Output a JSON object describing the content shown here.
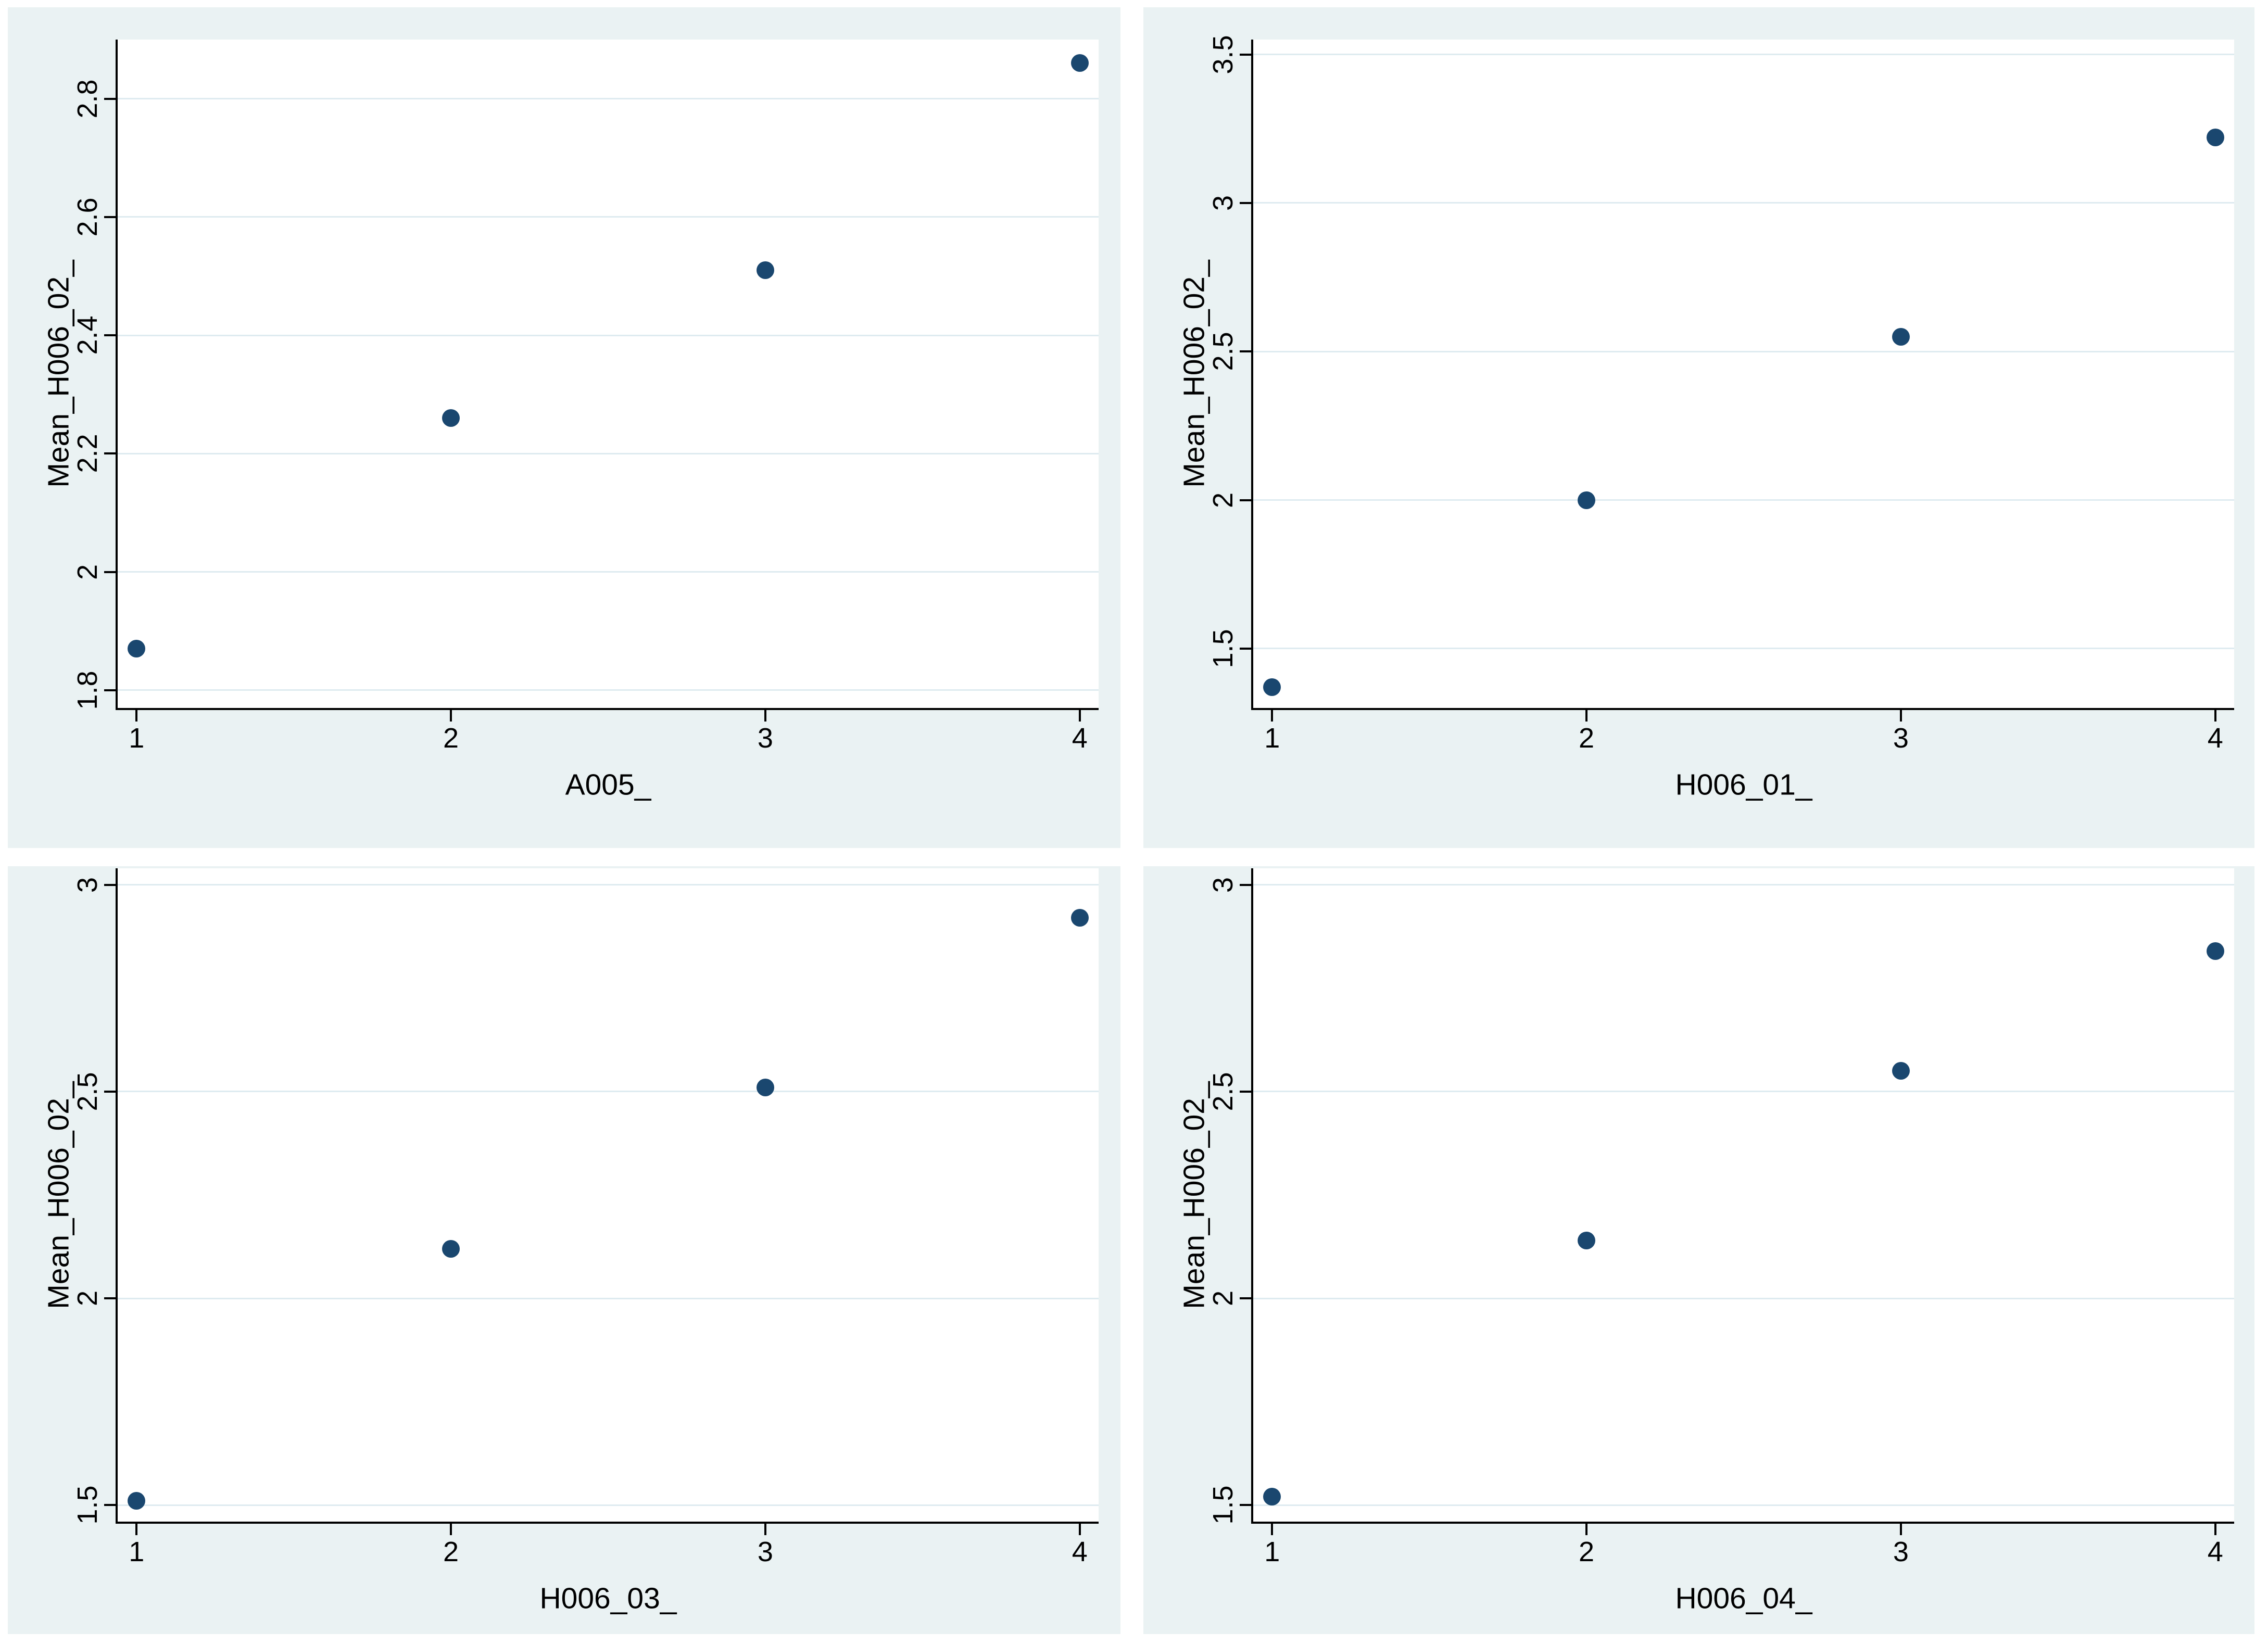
{
  "page": {
    "description": "Four Stata-style scatter plots arranged in a 2x2 grid, each plotting Mean_H006_02_ against a categorical 1-4 variable"
  },
  "colors": {
    "page_bg": "#ffffff",
    "panel_bg": "#eaf2f3",
    "plot_bg": "#ffffff",
    "grid": "#deebf0",
    "axis": "#000000",
    "text": "#000000",
    "dot": "#1a476f"
  },
  "chart_data": [
    {
      "panel": "top-left",
      "type": "scatter",
      "title": "",
      "xlabel": "A005_",
      "ylabel": "Mean_H006_02_",
      "x": [
        1,
        2,
        3,
        4
      ],
      "y": [
        1.87,
        2.26,
        2.51,
        2.86
      ],
      "xticks": [
        1,
        2,
        3,
        4
      ],
      "xtick_labels": [
        "1",
        "2",
        "3",
        "4"
      ],
      "yticks": [
        1.8,
        2.0,
        2.2,
        2.4,
        2.6,
        2.8
      ],
      "ytick_labels": [
        "1.8",
        "2",
        "2.2",
        "2.4",
        "2.6",
        "2.8"
      ],
      "xlim": [
        0.94,
        4.06
      ],
      "ylim": [
        1.77,
        2.9
      ],
      "grid": "horizontal",
      "legend": "none"
    },
    {
      "panel": "top-right",
      "type": "scatter",
      "title": "",
      "xlabel": "H006_01_",
      "ylabel": "Mean_H006_02_",
      "x": [
        1,
        2,
        3,
        4
      ],
      "y": [
        1.37,
        2.0,
        2.55,
        3.22
      ],
      "xticks": [
        1,
        2,
        3,
        4
      ],
      "xtick_labels": [
        "1",
        "2",
        "3",
        "4"
      ],
      "yticks": [
        1.5,
        2.0,
        2.5,
        3.0,
        3.5
      ],
      "ytick_labels": [
        "1.5",
        "2",
        "2.5",
        "3",
        "3.5"
      ],
      "xlim": [
        0.94,
        4.06
      ],
      "ylim": [
        1.3,
        3.55
      ],
      "grid": "horizontal",
      "legend": "none"
    },
    {
      "panel": "bottom-left",
      "type": "scatter",
      "title": "",
      "xlabel": "H006_03_",
      "ylabel": "Mean_H006_02_",
      "x": [
        1,
        2,
        3,
        4
      ],
      "y": [
        1.51,
        2.12,
        2.51,
        2.92
      ],
      "xticks": [
        1,
        2,
        3,
        4
      ],
      "xtick_labels": [
        "1",
        "2",
        "3",
        "4"
      ],
      "yticks": [
        1.5,
        2.0,
        2.5,
        3.0
      ],
      "ytick_labels": [
        "1.5",
        "2",
        "2.5",
        "3"
      ],
      "xlim": [
        0.94,
        4.06
      ],
      "ylim": [
        1.46,
        3.04
      ],
      "grid": "horizontal",
      "legend": "none"
    },
    {
      "panel": "bottom-right",
      "type": "scatter",
      "title": "",
      "xlabel": "H006_04_",
      "ylabel": "Mean_H006_02_",
      "x": [
        1,
        2,
        3,
        4
      ],
      "y": [
        1.52,
        2.14,
        2.55,
        2.84
      ],
      "xticks": [
        1,
        2,
        3,
        4
      ],
      "xtick_labels": [
        "1",
        "2",
        "3",
        "4"
      ],
      "yticks": [
        1.5,
        2.0,
        2.5,
        3.0
      ],
      "ytick_labels": [
        "1.5",
        "2",
        "2.5",
        "3"
      ],
      "xlim": [
        0.94,
        4.06
      ],
      "ylim": [
        1.46,
        3.04
      ],
      "grid": "horizontal",
      "legend": "none"
    }
  ]
}
